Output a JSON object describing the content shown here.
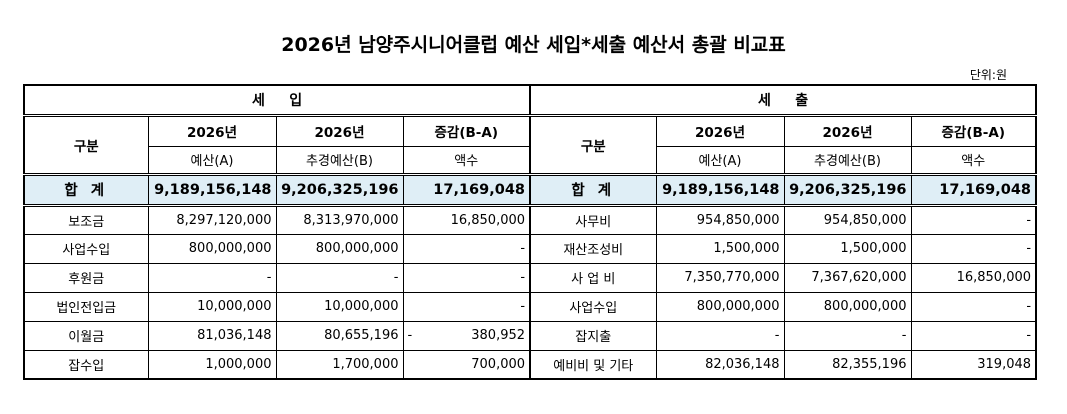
{
  "title": "2026년 남양주시니어클럽 예산 세입*세출 예산서 총괄 비교표",
  "unit": "단위:원",
  "income": {
    "header": "세     입",
    "col_gubun": "구분",
    "col_y1": "2026년",
    "col_y1_sub": "예산(A)",
    "col_y2": "2026년",
    "col_y2_sub": "추경예산(B)",
    "col_diff": "증감(B-A)",
    "col_diff_sub": "액수",
    "total": {
      "name": "합 계",
      "a": "9,189,156,148",
      "b": "9,206,325,196",
      "diff": "17,169,048"
    },
    "rows": [
      {
        "name": "보조금",
        "a": "8,297,120,000",
        "b": "8,313,970,000",
        "diff": "16,850,000",
        "diff_prefix": ""
      },
      {
        "name": "사업수입",
        "a": "800,000,000",
        "b": "800,000,000",
        "diff": "-",
        "diff_prefix": ""
      },
      {
        "name": "후원금",
        "a": "-",
        "b": "-",
        "diff": "-",
        "diff_prefix": ""
      },
      {
        "name": "법인전입금",
        "a": "10,000,000",
        "b": "10,000,000",
        "diff": "-",
        "diff_prefix": ""
      },
      {
        "name": "이월금",
        "a": "81,036,148",
        "b": "80,655,196",
        "diff": "380,952",
        "diff_prefix": "-"
      },
      {
        "name": "잡수입",
        "a": "1,000,000",
        "b": "1,700,000",
        "diff": "700,000",
        "diff_prefix": ""
      }
    ]
  },
  "expense": {
    "header": "세     출",
    "col_gubun": "구분",
    "col_y1": "2026년",
    "col_y1_sub": "예산(A)",
    "col_y2": "2026년",
    "col_y2_sub": "추경예산(B)",
    "col_diff": "증감(B-A)",
    "col_diff_sub": "액수",
    "total": {
      "name": "합 계",
      "a": "9,189,156,148",
      "b": "9,206,325,196",
      "diff": "17,169,048"
    },
    "rows": [
      {
        "name": "사무비",
        "a": "954,850,000",
        "b": "954,850,000",
        "diff": "-"
      },
      {
        "name": "재산조성비",
        "a": "1,500,000",
        "b": "1,500,000",
        "diff": "-"
      },
      {
        "name": "사 업 비",
        "a": "7,350,770,000",
        "b": "7,367,620,000",
        "diff": "16,850,000"
      },
      {
        "name": "사업수입",
        "a": "800,000,000",
        "b": "800,000,000",
        "diff": "-"
      },
      {
        "name": "잡지출",
        "a": "-",
        "b": "-",
        "diff": "-"
      },
      {
        "name": "예비비 및 기타",
        "a": "82,036,148",
        "b": "82,355,196",
        "diff": "319,048"
      }
    ]
  }
}
